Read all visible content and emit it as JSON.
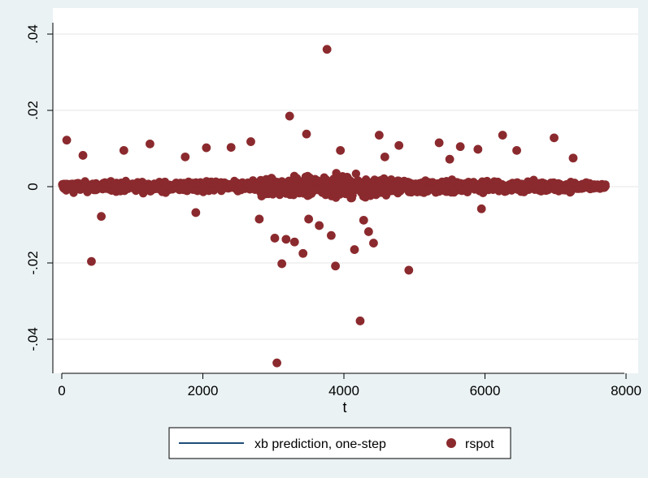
{
  "chart_data": {
    "type": "scatter",
    "xlabel": "t",
    "ylabel": "",
    "xlim": [
      0,
      8000
    ],
    "ylim": [
      -0.048,
      0.042
    ],
    "x_ticks": [
      0,
      2000,
      4000,
      6000,
      8000
    ],
    "x_tick_labels": [
      "0",
      "2000",
      "4000",
      "6000",
      "8000"
    ],
    "y_ticks": [
      -0.04,
      -0.02,
      0,
      0.02,
      0.04
    ],
    "y_tick_labels": [
      "-.04",
      "-.02",
      "0",
      ".02",
      ".04"
    ],
    "grid": true,
    "legend": {
      "position": "bottom",
      "entries": [
        {
          "label": "xb prediction, one-step",
          "marker": "line",
          "color": "#1f4e79"
        },
        {
          "label": "rspot",
          "marker": "dot",
          "color": "#8b2a2e"
        }
      ]
    },
    "colors": {
      "background": "#eaf2f3",
      "plot_area": "#ffffff",
      "grid": "#e6e6e6",
      "rspot": "#8b2a2e",
      "prediction_line": "#1f4e79"
    },
    "series": [
      {
        "name": "rspot",
        "marker": "dot",
        "band_x_range": [
          0,
          7700
        ],
        "band_note": "dense cloud of points around 0 for t from 0 to 7700",
        "points": [
          [
            3760,
            0.036
          ],
          [
            3230,
            0.0185
          ],
          [
            70,
            0.0122
          ],
          [
            3470,
            0.0138
          ],
          [
            4500,
            0.0135
          ],
          [
            6250,
            0.0135
          ],
          [
            6980,
            0.0128
          ],
          [
            1250,
            0.0112
          ],
          [
            4780,
            0.0108
          ],
          [
            5350,
            0.0115
          ],
          [
            5650,
            0.0105
          ],
          [
            2050,
            0.0102
          ],
          [
            2400,
            0.0103
          ],
          [
            3950,
            0.0095
          ],
          [
            880,
            0.0095
          ],
          [
            5900,
            0.0098
          ],
          [
            6450,
            0.0095
          ],
          [
            300,
            0.0082
          ],
          [
            1750,
            0.0078
          ],
          [
            2680,
            0.0118
          ],
          [
            4580,
            0.0078
          ],
          [
            5500,
            0.0072
          ],
          [
            7250,
            0.0075
          ],
          [
            420,
            -0.0196
          ],
          [
            560,
            -0.0078
          ],
          [
            3020,
            -0.0135
          ],
          [
            3120,
            -0.0202
          ],
          [
            3180,
            -0.0138
          ],
          [
            3300,
            -0.0145
          ],
          [
            3420,
            -0.0175
          ],
          [
            3500,
            -0.0085
          ],
          [
            3650,
            -0.0102
          ],
          [
            3820,
            -0.0128
          ],
          [
            3880,
            -0.0208
          ],
          [
            4150,
            -0.0165
          ],
          [
            4230,
            -0.0352
          ],
          [
            4350,
            -0.0118
          ],
          [
            4420,
            -0.0148
          ],
          [
            4920,
            -0.0219
          ],
          [
            3050,
            -0.0462
          ],
          [
            2800,
            -0.0085
          ],
          [
            5950,
            -0.0058
          ],
          [
            1900,
            -0.0068
          ],
          [
            4280,
            -0.0088
          ]
        ]
      }
    ]
  }
}
